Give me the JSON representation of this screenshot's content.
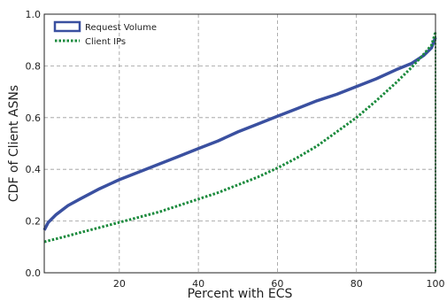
{
  "chart_data": {
    "type": "line",
    "title": "",
    "xlabel": "Percent with ECS",
    "ylabel": "CDF of Client ASNs",
    "xlim": [
      1,
      100
    ],
    "ylim": [
      0.0,
      1.0
    ],
    "xticks": [
      20,
      40,
      60,
      80,
      100
    ],
    "yticks": [
      0.0,
      0.2,
      0.4,
      0.6,
      0.8,
      1.0
    ],
    "xtick_labels": [
      "20",
      "40",
      "60",
      "80",
      "100"
    ],
    "ytick_labels": [
      "0.0",
      "0.2",
      "0.4",
      "0.6",
      "0.8",
      "1.0"
    ],
    "grid": true,
    "legend_position": "top-left",
    "series": [
      {
        "name": "Request Volume",
        "color": "#3a50a0",
        "style": "solid",
        "x": [
          1,
          2,
          4,
          7,
          10,
          15,
          20,
          25,
          30,
          35,
          40,
          45,
          50,
          55,
          60,
          65,
          70,
          75,
          80,
          85,
          90,
          94,
          97,
          99,
          100
        ],
        "y": [
          0.165,
          0.195,
          0.225,
          0.26,
          0.285,
          0.325,
          0.36,
          0.39,
          0.42,
          0.45,
          0.48,
          0.51,
          0.545,
          0.575,
          0.605,
          0.635,
          0.665,
          0.69,
          0.72,
          0.75,
          0.785,
          0.81,
          0.84,
          0.87,
          0.91
        ]
      },
      {
        "name": "Client IPs",
        "color": "#1a8a3c",
        "style": "dotted",
        "x": [
          1,
          5,
          10,
          15,
          20,
          25,
          30,
          35,
          40,
          45,
          50,
          55,
          60,
          65,
          70,
          75,
          80,
          85,
          90,
          94,
          97,
          99,
          100
        ],
        "y": [
          0.12,
          0.135,
          0.155,
          0.175,
          0.195,
          0.215,
          0.235,
          0.26,
          0.285,
          0.31,
          0.34,
          0.37,
          0.405,
          0.445,
          0.49,
          0.545,
          0.6,
          0.665,
          0.735,
          0.795,
          0.845,
          0.88,
          0.93
        ]
      }
    ]
  }
}
